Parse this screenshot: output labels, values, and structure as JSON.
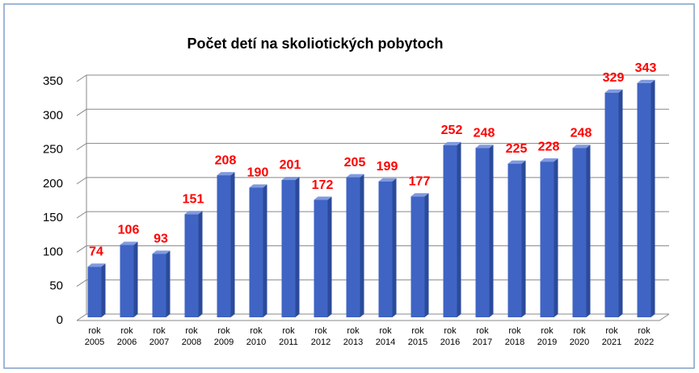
{
  "chart_data": {
    "type": "bar",
    "title": "Počet detí na skoliotických pobytoch",
    "categories": [
      "rok 2005",
      "rok 2006",
      "rok 2007",
      "rok 2008",
      "rok 2009",
      "rok 2010",
      "rok 2011",
      "rok 2012",
      "rok 2013",
      "rok 2014",
      "rok 2015",
      "rok 2016",
      "rok 2017",
      "rok 2018",
      "rok 2019",
      "rok 2020",
      "rok 2021",
      "rok 2022"
    ],
    "values": [
      74,
      106,
      93,
      151,
      208,
      190,
      201,
      172,
      205,
      199,
      177,
      252,
      248,
      225,
      228,
      248,
      329,
      343
    ],
    "color": "#3f64c4",
    "label_color": "#ff0000",
    "ylim": [
      0,
      350
    ],
    "yticks": [
      0,
      50,
      100,
      150,
      200,
      250,
      300,
      350
    ],
    "grid": true
  }
}
